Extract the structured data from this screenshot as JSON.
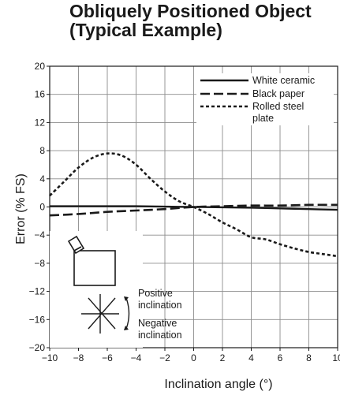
{
  "chart_data": {
    "type": "line",
    "title": [
      "Obliquely Positioned Object",
      "(Typical Example)"
    ],
    "xlabel": "Inclination angle (°)",
    "ylabel": "Error (% FS)",
    "xlim": [
      -10,
      10
    ],
    "ylim": [
      -20,
      20
    ],
    "xticks": [
      -10,
      -8,
      -6,
      -4,
      -2,
      0,
      2,
      4,
      6,
      8,
      10
    ],
    "yticks": [
      -20,
      -16,
      -12,
      -8,
      -4,
      0,
      4,
      8,
      12,
      16,
      20
    ],
    "xtick_labels": [
      "−10",
      "−8",
      "−6",
      "−4",
      "−2",
      "0",
      "2",
      "4",
      "6",
      "8",
      "10"
    ],
    "ytick_labels": [
      "−20",
      "−16",
      "−12",
      "−8",
      "−4",
      "0",
      "4",
      "8",
      "12",
      "16",
      "20"
    ],
    "grid": true,
    "legend_position": "top-right",
    "series": [
      {
        "name": "White ceramic",
        "style": "solid",
        "x": [
          -10,
          -8,
          -6,
          -4,
          -2,
          0,
          2,
          4,
          6,
          8,
          10
        ],
        "y": [
          0.1,
          0.1,
          0.1,
          0.1,
          0.05,
          0,
          -0.05,
          -0.1,
          -0.2,
          -0.3,
          -0.4
        ]
      },
      {
        "name": "Black paper",
        "style": "dashed",
        "x": [
          -10,
          -8,
          -6,
          -4,
          -2,
          0,
          2,
          4,
          6,
          8,
          10
        ],
        "y": [
          -1.2,
          -1.0,
          -0.7,
          -0.5,
          -0.3,
          0,
          0.1,
          0.2,
          0.2,
          0.3,
          0.3
        ]
      },
      {
        "name": "Rolled steel plate",
        "legend_lines": [
          "Rolled steel",
          "plate"
        ],
        "style": "dotted",
        "x": [
          -10,
          -9,
          -8,
          -7,
          -6,
          -5,
          -4,
          -3,
          -2,
          -1,
          0,
          1,
          2,
          3,
          4,
          5,
          6,
          7,
          8,
          9,
          10
        ],
        "y": [
          1.6,
          3.6,
          5.6,
          7.0,
          7.6,
          7.3,
          6.0,
          4.0,
          2.2,
          0.8,
          0,
          -1.0,
          -2.2,
          -3.2,
          -4.3,
          -4.6,
          -5.3,
          -5.9,
          -6.4,
          -6.7,
          -7.0
        ]
      }
    ],
    "annotations": {
      "positive": [
        "Positive",
        "inclination"
      ],
      "negative": [
        "Negative",
        "inclination"
      ]
    }
  }
}
